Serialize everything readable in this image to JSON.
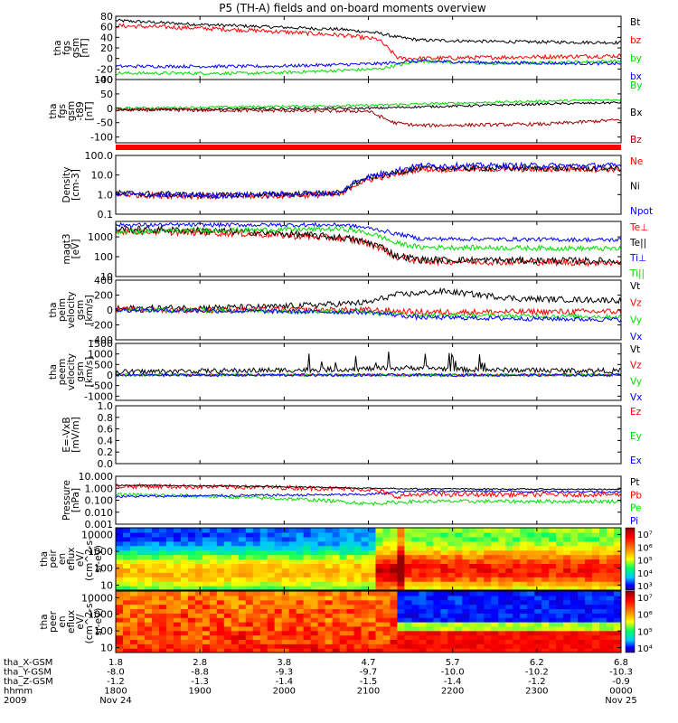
{
  "title": "P5 (TH-A) fields and on-board moments overview",
  "colors": {
    "black": "#000000",
    "red": "#ff0000",
    "green": "#00dd00",
    "blue": "#0000ff",
    "darkred": "#a00000"
  },
  "time_axis": {
    "start_hhmm": "1800",
    "end_hhmm": "0000",
    "tick_hhmm": [
      "1800",
      "1900",
      "2000",
      "2100",
      "2200",
      "2300",
      "0000"
    ],
    "position_rows": [
      {
        "label": "tha_X-GSM",
        "values": [
          "1.8",
          "2.8",
          "3.8",
          "4.7",
          "5.7",
          "6.2",
          "6.8"
        ]
      },
      {
        "label": "tha_Y-GSM",
        "values": [
          "-8.0",
          "-8.8",
          "-9.3",
          "-9.7",
          "-10.0",
          "-10.2",
          "-10.3"
        ]
      },
      {
        "label": "tha_Z-GSM",
        "values": [
          "-1.2",
          "-1.3",
          "-1.4",
          "-1.5",
          "-1.4",
          "-1.2",
          "-0.9"
        ]
      },
      {
        "label": "hhmm",
        "values": [
          "1800",
          "1900",
          "2000",
          "2100",
          "2200",
          "2300",
          "0000"
        ]
      }
    ],
    "year": "2009",
    "start_date": "Nov 24",
    "end_date": "Nov 25"
  },
  "chart_data": [
    {
      "type": "line",
      "ylabel": [
        "tha",
        "fgs",
        "gsm",
        "[nT]"
      ],
      "ylim": [
        -40,
        80
      ],
      "yticks": [
        "80",
        "60",
        "40",
        "20",
        "0",
        "-20",
        "-40"
      ],
      "legend": [
        "Bt",
        "bz",
        "by",
        "bx"
      ],
      "series": [
        {
          "name": "Bt",
          "color": "#000000",
          "points": [
            [
              0,
              72
            ],
            [
              0.15,
              65
            ],
            [
              0.3,
              60
            ],
            [
              0.45,
              55
            ],
            [
              0.52,
              48
            ],
            [
              0.56,
              40
            ],
            [
              0.6,
              35
            ],
            [
              0.75,
              32
            ],
            [
              1,
              30
            ]
          ],
          "noise": 3,
          "spikes": false
        },
        {
          "name": "bz",
          "color": "#ff0000",
          "points": [
            [
              0,
              62
            ],
            [
              0.15,
              58
            ],
            [
              0.3,
              52
            ],
            [
              0.45,
              44
            ],
            [
              0.52,
              36
            ],
            [
              0.56,
              0
            ],
            [
              0.6,
              0
            ],
            [
              0.75,
              2
            ],
            [
              1,
              5
            ]
          ],
          "noise": 4,
          "spikes": false
        },
        {
          "name": "by",
          "color": "#00dd00",
          "points": [
            [
              0,
              -28
            ],
            [
              0.3,
              -28
            ],
            [
              0.52,
              -20
            ],
            [
              0.6,
              -5
            ],
            [
              0.75,
              -10
            ],
            [
              1,
              -5
            ]
          ],
          "noise": 3,
          "spikes": false
        },
        {
          "name": "bx",
          "color": "#0000ff",
          "points": [
            [
              0,
              -15
            ],
            [
              0.3,
              -15
            ],
            [
              0.52,
              -10
            ],
            [
              0.6,
              -5
            ],
            [
              0.75,
              -8
            ],
            [
              1,
              -10
            ]
          ],
          "noise": 3,
          "spikes": false
        }
      ]
    },
    {
      "type": "line",
      "ylabel": [
        "tha",
        "fgs",
        "gsm",
        "-t89",
        "[nT]"
      ],
      "ylim": [
        -120,
        100
      ],
      "yticks": [
        "100",
        "50",
        "0",
        "-50",
        "-100"
      ],
      "legend": [
        "By",
        "Bx",
        "Bz"
      ],
      "series": [
        {
          "name": "By",
          "color": "#00dd00",
          "points": [
            [
              0,
              0
            ],
            [
              0.5,
              10
            ],
            [
              0.6,
              15
            ],
            [
              0.85,
              25
            ],
            [
              1,
              30
            ]
          ],
          "noise": 4,
          "spikes": false
        },
        {
          "name": "Bx",
          "color": "#000000",
          "points": [
            [
              0,
              -5
            ],
            [
              0.5,
              0
            ],
            [
              0.6,
              5
            ],
            [
              0.85,
              15
            ],
            [
              1,
              20
            ]
          ],
          "noise": 4,
          "spikes": false
        },
        {
          "name": "Bz",
          "color": "#a00000",
          "points": [
            [
              0,
              -5
            ],
            [
              0.5,
              -10
            ],
            [
              0.55,
              -50
            ],
            [
              0.6,
              -60
            ],
            [
              0.85,
              -55
            ],
            [
              1,
              -40
            ]
          ],
          "noise": 6,
          "spikes": false
        }
      ]
    },
    {
      "type": "line",
      "log": true,
      "ylabel": [
        "Density",
        "[cm-3]"
      ],
      "ylim": [
        0.1,
        100
      ],
      "yticks": [
        "100.0",
        "10.0",
        "1.0",
        "0.1"
      ],
      "legend": [
        "Ne",
        "Ni",
        "Npot"
      ],
      "series": [
        {
          "name": "Ne",
          "color": "#ff0000",
          "points": [
            [
              0,
              1
            ],
            [
              0.2,
              0.8
            ],
            [
              0.45,
              1
            ],
            [
              0.55,
              10
            ],
            [
              0.6,
              20
            ],
            [
              1,
              20
            ]
          ],
          "noise": 0.3,
          "spikes": false
        },
        {
          "name": "Ni",
          "color": "#000000",
          "points": [
            [
              0,
              1.2
            ],
            [
              0.2,
              0.9
            ],
            [
              0.45,
              1.2
            ],
            [
              0.55,
              12
            ],
            [
              0.6,
              22
            ],
            [
              1,
              22
            ]
          ],
          "noise": 0.3,
          "spikes": false
        },
        {
          "name": "Npot",
          "color": "#0000ff",
          "points": [
            [
              0,
              1
            ],
            [
              0.2,
              0.9
            ],
            [
              0.45,
              1.2
            ],
            [
              0.55,
              15
            ],
            [
              0.6,
              30
            ],
            [
              1,
              30
            ]
          ],
          "noise": 0.3,
          "spikes": false
        }
      ]
    },
    {
      "type": "line",
      "log": true,
      "ylabel": [
        "magt3",
        "[eV]"
      ],
      "ylim": [
        10,
        6000
      ],
      "yticks": [
        "1000",
        "100",
        "10"
      ],
      "legend": [
        "Te⊥",
        "Te||",
        "Ti⊥",
        "Ti||"
      ],
      "series": [
        {
          "name": "Te⊥",
          "color": "#ff0000",
          "points": [
            [
              0,
              2000
            ],
            [
              0.25,
              1500
            ],
            [
              0.45,
              800
            ],
            [
              0.55,
              100
            ],
            [
              0.6,
              60
            ],
            [
              1,
              50
            ]
          ],
          "noise": 0.35,
          "spikes": false
        },
        {
          "name": "Te||",
          "color": "#000000",
          "points": [
            [
              0,
              2500
            ],
            [
              0.25,
              1800
            ],
            [
              0.45,
              900
            ],
            [
              0.55,
              120
            ],
            [
              0.6,
              70
            ],
            [
              1,
              60
            ]
          ],
          "noise": 0.35,
          "spikes": false
        },
        {
          "name": "Ti⊥",
          "color": "#0000ff",
          "points": [
            [
              0,
              4000
            ],
            [
              0.45,
              4000
            ],
            [
              0.55,
              1500
            ],
            [
              0.6,
              800
            ],
            [
              1,
              700
            ]
          ],
          "noise": 0.2,
          "spikes": false
        },
        {
          "name": "Ti||",
          "color": "#00dd00",
          "points": [
            [
              0,
              1800
            ],
            [
              0.45,
              2500
            ],
            [
              0.55,
              500
            ],
            [
              0.6,
              300
            ],
            [
              1,
              250
            ]
          ],
          "noise": 0.25,
          "spikes": false
        }
      ]
    },
    {
      "type": "line",
      "ylabel": [
        "tha",
        "peim",
        "velocity",
        "gsm",
        "[km/s]"
      ],
      "ylim": [
        -400,
        400
      ],
      "yticks": [
        "400",
        "200",
        "0",
        "-200",
        "-400"
      ],
      "legend": [
        "Vt",
        "Vz",
        "Vy",
        "Vx"
      ],
      "series": [
        {
          "name": "Vt",
          "color": "#000000",
          "points": [
            [
              0,
              20
            ],
            [
              0.3,
              40
            ],
            [
              0.5,
              100
            ],
            [
              0.55,
              200
            ],
            [
              0.65,
              250
            ],
            [
              0.8,
              150
            ],
            [
              1,
              130
            ]
          ],
          "noise": 40,
          "spikes": false
        },
        {
          "name": "Vz",
          "color": "#ff0000",
          "points": [
            [
              0,
              0
            ],
            [
              0.5,
              0
            ],
            [
              0.6,
              -30
            ],
            [
              1,
              -20
            ]
          ],
          "noise": 40,
          "spikes": false
        },
        {
          "name": "Vy",
          "color": "#00dd00",
          "points": [
            [
              0,
              0
            ],
            [
              0.5,
              -20
            ],
            [
              0.6,
              -70
            ],
            [
              1,
              -90
            ]
          ],
          "noise": 30,
          "spikes": false
        },
        {
          "name": "Vx",
          "color": "#0000ff",
          "points": [
            [
              0,
              0
            ],
            [
              0.5,
              -30
            ],
            [
              0.6,
              -100
            ],
            [
              1,
              -130
            ]
          ],
          "noise": 30,
          "spikes": false
        }
      ]
    },
    {
      "type": "line",
      "ylabel": [
        "tha",
        "peem",
        "velocity",
        "gsm",
        "[km/s]"
      ],
      "ylim": [
        -1200,
        1500
      ],
      "yticks": [
        "1500",
        "1000",
        "500",
        "0",
        "-500",
        "-1000"
      ],
      "legend": [
        "Vt",
        "Vz",
        "Vy",
        "Vx"
      ],
      "series": [
        {
          "name": "Vz",
          "color": "#ff0000",
          "points": [
            [
              0,
              0
            ],
            [
              1,
              0
            ]
          ],
          "noise": 60,
          "spikes": false
        },
        {
          "name": "Vy",
          "color": "#00dd00",
          "points": [
            [
              0,
              0
            ],
            [
              1,
              0
            ]
          ],
          "noise": 60,
          "spikes": false
        },
        {
          "name": "Vx",
          "color": "#0000ff",
          "points": [
            [
              0,
              0
            ],
            [
              1,
              0
            ]
          ],
          "noise": 70,
          "spikes": false
        },
        {
          "name": "Vt",
          "color": "#000000",
          "points": [
            [
              0,
              150
            ],
            [
              0.4,
              250
            ],
            [
              0.6,
              350
            ],
            [
              0.7,
              250
            ],
            [
              1,
              200
            ]
          ],
          "noise": 120,
          "spikes": true
        }
      ]
    },
    {
      "type": "line",
      "ylabel": [
        "E=-VxB",
        "[mV/m]"
      ],
      "ylim": [
        0,
        1
      ],
      "yticks": [
        "1.0",
        "0.8",
        "0.6",
        "0.4",
        "0.2",
        "0.0"
      ],
      "legend": [
        "Ez",
        "Ey",
        "Ex"
      ],
      "series": []
    },
    {
      "type": "line",
      "log": true,
      "ylabel": [
        "Pressure",
        "[nPa]"
      ],
      "ylim": [
        0.001,
        10
      ],
      "yticks": [
        "10.000",
        "1.000",
        "0.100",
        "0.010",
        "0.001"
      ],
      "legend": [
        "Pt",
        "Pb",
        "Pe",
        "Pi"
      ],
      "series": [
        {
          "name": "Pe",
          "color": "#00dd00",
          "points": [
            [
              0,
              0.3
            ],
            [
              0.3,
              0.15
            ],
            [
              0.5,
              0.05
            ],
            [
              0.6,
              0.08
            ],
            [
              1,
              0.08
            ]
          ],
          "noise": 0.3,
          "spikes": false
        },
        {
          "name": "Pi",
          "color": "#0000ff",
          "points": [
            [
              0,
              0.2
            ],
            [
              0.5,
              0.3
            ],
            [
              0.6,
              0.6
            ],
            [
              1,
              0.5
            ]
          ],
          "noise": 0.2,
          "spikes": false
        },
        {
          "name": "Pb",
          "color": "#ff0000",
          "points": [
            [
              0,
              1.5
            ],
            [
              0.3,
              1.2
            ],
            [
              0.5,
              0.8
            ],
            [
              0.55,
              0.2
            ],
            [
              0.6,
              0.3
            ],
            [
              1,
              0.3
            ]
          ],
          "noise": 0.4,
          "spikes": false
        },
        {
          "name": "Pt",
          "color": "#000000",
          "points": [
            [
              0,
              1.8
            ],
            [
              0.3,
              1.4
            ],
            [
              0.5,
              1
            ],
            [
              0.6,
              0.9
            ],
            [
              1,
              0.8
            ]
          ],
          "noise": 0.1,
          "spikes": false
        }
      ]
    },
    {
      "type": "heatmap",
      "ylabel": [
        "tha",
        "peir",
        "en",
        "eflux",
        "eV/",
        "(cm^2-s-",
        "sr-eV)"
      ],
      "ylim": [
        5,
        25000
      ],
      "yticks": [
        "10000",
        "1000",
        "100",
        "10"
      ],
      "colorbar": [
        "10⁷",
        "10⁶",
        "10⁵",
        "10⁴",
        "10³"
      ]
    },
    {
      "type": "heatmap",
      "ylabel": [
        "tha",
        "peer",
        "en",
        "eflux",
        "eV/",
        "(cm^2-s-",
        "sr-eV)"
      ],
      "ylim": [
        5,
        25000
      ],
      "yticks": [
        "10000",
        "1000",
        "100",
        "10"
      ],
      "colorbar": [
        "10⁷",
        "10⁶",
        "10⁵",
        "10⁴"
      ]
    }
  ]
}
